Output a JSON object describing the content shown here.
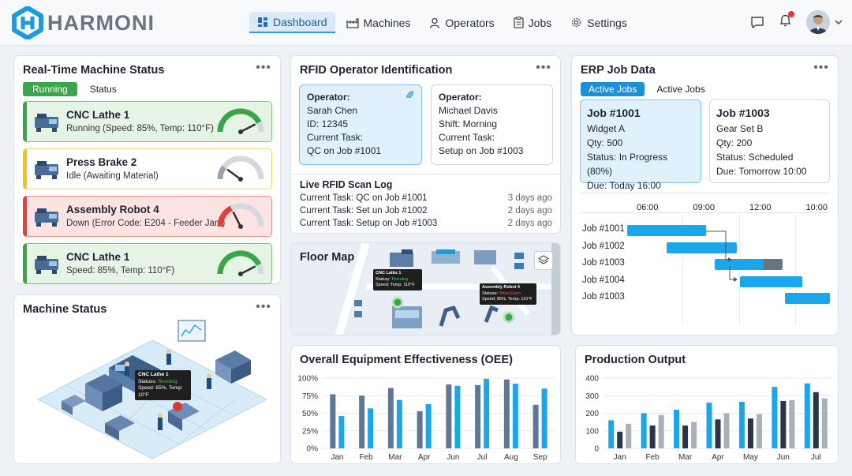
{
  "app": {
    "brand": "HARMONI"
  },
  "nav": [
    {
      "label": "Dashboard"
    },
    {
      "label": "Machines"
    },
    {
      "label": "Operators"
    },
    {
      "label": "Jobs"
    },
    {
      "label": "Settings"
    }
  ],
  "colors": {
    "accent": "#1d9bd8",
    "running": "#3aa54a",
    "idle": "#f3c21c",
    "down": "#e2403a",
    "bar_dark": "#5e7796",
    "bar_light": "#1aa6ea",
    "bar_gray": "#a8b0ba",
    "bar_navy": "#2b3548"
  },
  "machine_status": {
    "title": "Real-Time Machine Status",
    "tab_running": "Running",
    "tab_status": "Status",
    "machines": [
      {
        "name": "CNC Lathe 1",
        "status": "Running (Speed: 85%, Temp: 110°F)",
        "state": "running",
        "level": 0.85
      },
      {
        "name": "Press Brake 2",
        "status": "Idle (Awaiting Material)",
        "state": "idle",
        "level": 0.2
      },
      {
        "name": "Assembly Robot 4",
        "status": "Down (Error Code: E204 - Feeder Jam)",
        "state": "down",
        "level": 0.35
      },
      {
        "name": "CNC Lathe 1",
        "status": "Speed: 85%, Temp: 110°F)",
        "state": "running",
        "level": 0.85
      }
    ]
  },
  "machine_status_3d": {
    "title": "Machine Status",
    "tooltip": {
      "name": "CNC Lathe 1",
      "status_label": "Statuss:",
      "status_value": "Rnnning",
      "detail": "Speed: 85%, Temp: 10°F"
    }
  },
  "rfid": {
    "title": "RFID Operator Identification",
    "operators": [
      {
        "heading": "Operator:",
        "name": "Sarah Chen",
        "line2": "ID: 12345",
        "line3": "Current Task:",
        "line4": "QC on Job #1001"
      },
      {
        "heading": "Operator:",
        "name": "Michael Davis",
        "line2": "Shift: Morning",
        "line3": "Current Task:",
        "line4": "Setup on Job #1003"
      }
    ],
    "log_title": "Live RFID Scan Log",
    "log": [
      {
        "text": "Current Task: QC on Job #1001",
        "ago": "3 days ago"
      },
      {
        "text": "Current Task: Set un Job #1002",
        "ago": "2 days ago"
      },
      {
        "text": "Current Task: Setup on Job #1003",
        "ago": "2 days ago"
      }
    ]
  },
  "floor_map": {
    "title": "Floor Map",
    "tip1": {
      "name": "CNC Latks 1",
      "status_label": "Statury:",
      "status_value": "Rnnning",
      "detail": "Speed: Temp: 110°F"
    },
    "tip2": {
      "name": "Assembly Robot 4",
      "status_label": "Statuse:",
      "status_value": "Shier Eaon",
      "detail": "Speed: 85%, Temp: 110°F"
    }
  },
  "erp": {
    "title": "ERP Job Data",
    "tab_active": "Active Jobs",
    "tab_other": "Active Jobs",
    "jobs": [
      {
        "id": "Job #1001",
        "item": "Widget A",
        "qty": "Qty: 500",
        "status": "Status: In Progress (80%)",
        "due": "Due: Today 16:00"
      },
      {
        "id": "Job #1003",
        "item": "Gear Set B",
        "qty": "Qty: 200",
        "status": "Status: Scheduled",
        "due": "Due: Tomorrow 10:00"
      }
    ],
    "gantt_times": [
      "06:00",
      "09:00",
      "12:00",
      "10:00"
    ],
    "gantt_rows": [
      {
        "label": "Job #1001",
        "start": 0,
        "end": 1.4,
        "done": 1.0
      },
      {
        "label": "Job #1002",
        "start": 0.7,
        "end": 1.95,
        "done": 1.0
      },
      {
        "label": "Job #1003",
        "start": 1.55,
        "end": 2.75,
        "done": 0.72
      },
      {
        "label": "Job #1004",
        "start": 2.0,
        "end": 3.1,
        "done": 1.0
      },
      {
        "label": "Job #1003",
        "start": 2.8,
        "end": 3.75,
        "done": 1.0
      }
    ]
  },
  "chart_data": [
    {
      "type": "bar",
      "title": "Overall Equipment Effectiveness (OEE)",
      "categories": [
        "Jan",
        "Feb",
        "Mar",
        "Apr",
        "Jun",
        "Jul",
        "Aug",
        "Sep"
      ],
      "y_ticks": [
        "100%",
        "75%",
        "50%",
        "25%",
        "0%"
      ],
      "ylim": [
        0,
        100
      ],
      "series": [
        {
          "values": [
            77,
            75,
            86,
            53,
            91,
            90,
            98,
            62
          ]
        },
        {
          "values": [
            46,
            57,
            69,
            63,
            89,
            99,
            92,
            85
          ]
        }
      ]
    },
    {
      "type": "bar",
      "title": "Production Output",
      "categories": [
        "Jan",
        "Feb",
        "Mar",
        "Apr",
        "May",
        "Jun",
        "Jul"
      ],
      "y_ticks": [
        "400",
        "300",
        "200",
        "100",
        "0"
      ],
      "ylim": [
        0,
        400
      ],
      "series": [
        {
          "values": [
            160,
            200,
            220,
            260,
            265,
            350,
            370
          ]
        },
        {
          "values": [
            95,
            130,
            130,
            165,
            170,
            270,
            320
          ]
        },
        {
          "values": [
            140,
            190,
            150,
            200,
            195,
            275,
            285
          ]
        }
      ]
    }
  ]
}
